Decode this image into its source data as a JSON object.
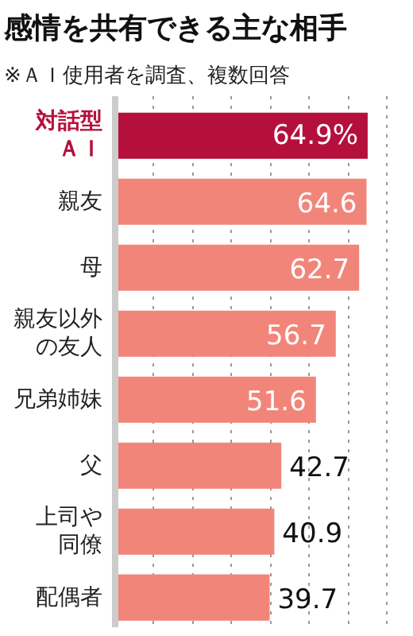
{
  "chart_data": {
    "type": "bar",
    "orientation": "horizontal",
    "title": "感情を共有できる主な相手",
    "subtitle": "※ＡＩ使用者を調査、複数回答",
    "categories": [
      "対話型ＡＩ",
      "親友",
      "母",
      "親友以外の友人",
      "兄弟姉妹",
      "父",
      "上司や同僚",
      "配偶者"
    ],
    "values": [
      64.9,
      64.6,
      62.7,
      56.7,
      51.6,
      42.7,
      40.9,
      39.7
    ],
    "value_labels": [
      "64.9%",
      "64.6",
      "62.7",
      "56.7",
      "51.6",
      "42.7",
      "40.9",
      "39.7"
    ],
    "colors": [
      "#b5103c",
      "#f2857a",
      "#f2857a",
      "#f2857a",
      "#f2857a",
      "#f2857a",
      "#f2857a",
      "#f2857a"
    ],
    "xticks": [
      {
        "value": 10,
        "label": null
      },
      {
        "value": 20,
        "label": null
      },
      {
        "value": 30,
        "label": null
      },
      {
        "value": 40,
        "label": null
      },
      {
        "value": 50,
        "label": null
      },
      {
        "value": 60,
        "label": null
      },
      {
        "value": 70,
        "label": null
      }
    ],
    "tick_labels": "y",
    "grid": "x"
  }
}
